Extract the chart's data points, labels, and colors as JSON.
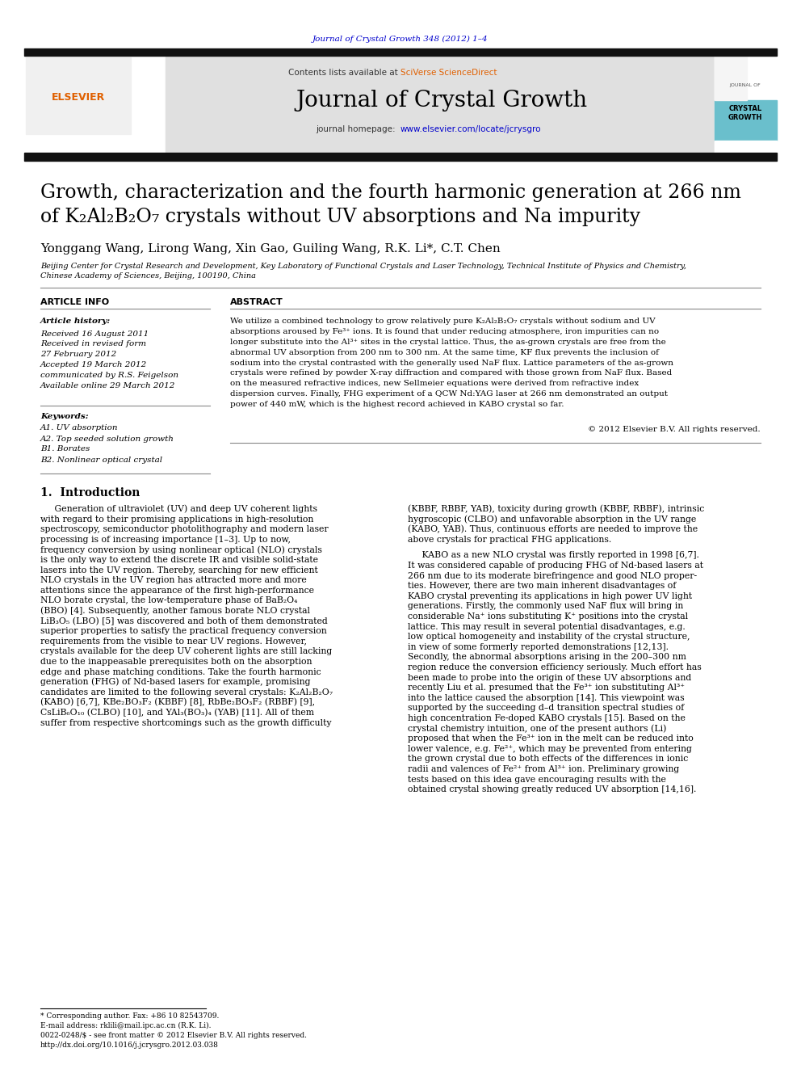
{
  "page_bg": "#ffffff",
  "top_ref": "Journal of Crystal Growth 348 (2012) 1–4",
  "top_ref_color": "#0000cc",
  "header_bg": "#e0e0e0",
  "sciverse_color": "#e06000",
  "homepage_url": "www.elsevier.com/locate/jcrysgro",
  "homepage_url_color": "#0000cc",
  "elsevier_color": "#e06000",
  "black_bar": "#111111",
  "crystal_bar_color": "#6abfcc",
  "article_title1": "Growth, characterization and the fourth harmonic generation at 266 nm",
  "article_title2": "of K₂Al₂B₂O₇ crystals without UV absorptions and Na impurity",
  "authors_text": "Yonggang Wang, Lirong Wang, Xin Gao, Guiling Wang, R.K. Li*, C.T. Chen",
  "affil1": "Beijing Center for Crystal Research and Development, Key Laboratory of Functional Crystals and Laser Technology, Technical Institute of Physics and Chemistry,",
  "affil2": "Chinese Academy of Sciences, Beijing, 100190, China",
  "art_info_hdr": "ARTICLE INFO",
  "abstract_hdr": "ABSTRACT",
  "art_history_lbl": "Article history:",
  "received1": "Received 16 August 2011",
  "received2": "Received in revised form",
  "received3": "27 February 2012",
  "accepted": "Accepted 19 March 2012",
  "communicated": "communicated by R.S. Feigelson",
  "available": "Available online 29 March 2012",
  "keywords_lbl": "Keywords:",
  "kw1": "A1. UV absorption",
  "kw2": "A2. Top seeded solution growth",
  "kw3": "B1. Borates",
  "kw4": "B2. Nonlinear optical crystal",
  "abstract_lines": [
    "We utilize a combined technology to grow relatively pure K₂Al₂B₂O₇ crystals without sodium and UV",
    "absorptions aroused by Fe³⁺ ions. It is found that under reducing atmosphere, iron impurities can no",
    "longer substitute into the Al³⁺ sites in the crystal lattice. Thus, the as-grown crystals are free from the",
    "abnormal UV absorption from 200 nm to 300 nm. At the same time, KF flux prevents the inclusion of",
    "sodium into the crystal contrasted with the generally used NaF flux. Lattice parameters of the as-grown",
    "crystals were refined by powder X-ray diffraction and compared with those grown from NaF flux. Based",
    "on the measured refractive indices, new Sellmeier equations were derived from refractive index",
    "dispersion curves. Finally, FHG experiment of a QCW Nd:YAG laser at 266 nm demonstrated an output",
    "power of 440 mW, which is the highest record achieved in KABO crystal so far."
  ],
  "copyright": "© 2012 Elsevier B.V. All rights reserved.",
  "intro_head": "1.  Introduction",
  "intro_col1": [
    "     Generation of ultraviolet (UV) and deep UV coherent lights",
    "with regard to their promising applications in high-resolution",
    "spectroscopy, semiconductor photolithography and modern laser",
    "processing is of increasing importance [1–3]. Up to now,",
    "frequency conversion by using nonlinear optical (NLO) crystals",
    "is the only way to extend the discrete IR and visible solid-state",
    "lasers into the UV region. Thereby, searching for new efficient",
    "NLO crystals in the UV region has attracted more and more",
    "attentions since the appearance of the first high-performance",
    "NLO borate crystal, the low-temperature phase of BaB₂O₄",
    "(BBO) [4]. Subsequently, another famous borate NLO crystal",
    "LiB₃O₅ (LBO) [5] was discovered and both of them demonstrated",
    "superior properties to satisfy the practical frequency conversion",
    "requirements from the visible to near UV regions. However,",
    "crystals available for the deep UV coherent lights are still lacking",
    "due to the inappeasable prerequisites both on the absorption",
    "edge and phase matching conditions. Take the fourth harmonic",
    "generation (FHG) of Nd-based lasers for example, promising",
    "candidates are limited to the following several crystals: K₂Al₂B₂O₇",
    "(KABO) [6,7], KBe₂BO₃F₂ (KBBF) [8], RbBe₂BO₃F₂ (RBBF) [9],",
    "CsLiB₆O₁₀ (CLBO) [10], and YAl₃(BO₃)₄ (YAB) [11]. All of them",
    "suffer from respective shortcomings such as the growth difficulty"
  ],
  "intro_col2_p1": [
    "(KBBF, RBBF, YAB), toxicity during growth (KBBF, RBBF), intrinsic",
    "hygroscopic (CLBO) and unfavorable absorption in the UV range",
    "(KABO, YAB). Thus, continuous efforts are needed to improve the",
    "above crystals for practical FHG applications."
  ],
  "intro_col2_p2": [
    "     KABO as a new NLO crystal was firstly reported in 1998 [6,7].",
    "It was considered capable of producing FHG of Nd-based lasers at",
    "266 nm due to its moderate birefringence and good NLO proper-",
    "ties. However, there are two main inherent disadvantages of",
    "KABO crystal preventing its applications in high power UV light",
    "generations. Firstly, the commonly used NaF flux will bring in",
    "considerable Na⁺ ions substituting K⁺ positions into the crystal",
    "lattice. This may result in several potential disadvantages, e.g.",
    "low optical homogeneity and instability of the crystal structure,",
    "in view of some formerly reported demonstrations [12,13].",
    "Secondly, the abnormal absorptions arising in the 200–300 nm",
    "region reduce the conversion efficiency seriously. Much effort has",
    "been made to probe into the origin of these UV absorptions and",
    "recently Liu et al. presumed that the Fe³⁺ ion substituting Al³⁺",
    "into the lattice caused the absorption [14]. This viewpoint was",
    "supported by the succeeding d–d transition spectral studies of",
    "high concentration Fe-doped KABO crystals [15]. Based on the",
    "crystal chemistry intuition, one of the present authors (Li)",
    "proposed that when the Fe³⁺ ion in the melt can be reduced into",
    "lower valence, e.g. Fe²⁺, which may be prevented from entering",
    "the grown crystal due to both effects of the differences in ionic",
    "radii and valences of Fe²⁺ from Al³⁺ ion. Preliminary growing",
    "tests based on this idea gave encouraging results with the",
    "obtained crystal showing greatly reduced UV absorption [14,16]."
  ],
  "fn1": "* Corresponding author. Fax: +86 10 82543709.",
  "fn2": "E-mail address: rklili@mail.ipc.ac.cn (R.K. Li).",
  "fn3": "0022-0248/$ - see front matter © 2012 Elsevier B.V. All rights reserved.",
  "fn4": "http://dx.doi.org/10.1016/j.jcrysgro.2012.03.038"
}
